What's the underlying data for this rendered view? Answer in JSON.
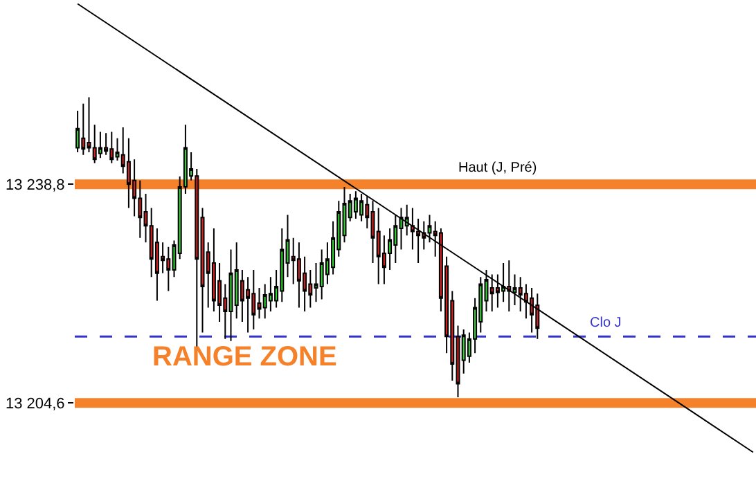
{
  "chart_data": {
    "type": "candlestick",
    "categories": [
      null,
      null,
      null,
      null,
      null,
      null,
      null,
      null,
      null,
      null,
      null,
      null,
      null,
      null,
      null,
      null,
      null,
      null,
      null,
      null,
      null,
      null,
      null,
      null,
      null,
      null,
      null,
      null,
      null,
      null,
      null,
      null,
      null,
      null,
      null,
      null,
      null,
      null,
      null,
      null,
      null,
      null,
      null,
      null,
      null,
      null,
      null,
      null,
      null,
      null,
      null,
      null,
      null,
      null,
      null,
      null,
      null,
      null,
      null,
      null,
      null,
      null,
      null,
      null,
      null,
      null,
      null,
      null,
      null,
      null,
      null,
      null,
      null,
      null,
      null,
      null,
      null,
      null,
      null,
      null,
      null,
      null,
      null,
      null,
      null,
      null,
      null,
      null,
      null,
      null,
      null,
      null,
      null,
      null,
      null,
      null,
      null,
      null,
      null,
      null,
      null,
      null,
      null,
      null,
      null,
      null,
      null,
      null,
      null,
      null,
      null,
      null,
      null,
      null,
      null,
      null,
      null,
      null,
      null,
      null
    ],
    "ohlc": [
      [
        13244.5,
        13250.3,
        13243.8,
        13247.5
      ],
      [
        13246.0,
        13251.4,
        13243.4,
        13244.3
      ],
      [
        13245.3,
        13252.4,
        13243.8,
        13244.5
      ],
      [
        13244.5,
        13248.1,
        13242.1,
        13242.7
      ],
      [
        13243.6,
        13247.0,
        13242.9,
        13244.5
      ],
      [
        13244.5,
        13246.8,
        13243.4,
        13244.0
      ],
      [
        13244.3,
        13247.0,
        13242.1,
        13242.7
      ],
      [
        13243.1,
        13246.0,
        13242.5,
        13243.8
      ],
      [
        13243.4,
        13247.7,
        13240.5,
        13241.6
      ],
      [
        13242.3,
        13246.0,
        13235.1,
        13238.8
      ],
      [
        13239.4,
        13242.7,
        13233.8,
        13236.6
      ],
      [
        13236.6,
        13239.4,
        13230.4,
        13233.6
      ],
      [
        13234.5,
        13237.3,
        13229.7,
        13232.3
      ],
      [
        13232.3,
        13235.1,
        13224.3,
        13227.1
      ],
      [
        13229.7,
        13231.9,
        13220.6,
        13224.9
      ],
      [
        13227.5,
        13229.7,
        13224.9,
        13226.9
      ],
      [
        13227.1,
        13229.0,
        13222.1,
        13225.4
      ],
      [
        13225.4,
        13230.0,
        13224.3,
        13229.3
      ],
      [
        13228.0,
        13240.0,
        13227.1,
        13238.4
      ],
      [
        13238.4,
        13248.1,
        13237.3,
        13244.5
      ],
      [
        13240.1,
        13243.8,
        13239.4,
        13241.2
      ],
      [
        13240.1,
        13241.2,
        13213.1,
        13227.1
      ],
      [
        13233.6,
        13235.1,
        13215.6,
        13222.8
      ],
      [
        13228.2,
        13229.7,
        13219.5,
        13224.9
      ],
      [
        13226.5,
        13231.9,
        13218.9,
        13220.6
      ],
      [
        13223.7,
        13226.5,
        13217.3,
        13219.9
      ],
      [
        13221.0,
        13223.2,
        13214.6,
        13218.9
      ],
      [
        13218.9,
        13228.6,
        13214.3,
        13224.9
      ],
      [
        13219.9,
        13229.7,
        13217.8,
        13225.4
      ],
      [
        13223.7,
        13225.4,
        13217.3,
        13220.6
      ],
      [
        13222.3,
        13224.3,
        13215.6,
        13221.0
      ],
      [
        13221.7,
        13225.4,
        13216.1,
        13218.4
      ],
      [
        13220.2,
        13222.6,
        13217.8,
        13219.3
      ],
      [
        13219.5,
        13223.2,
        13217.8,
        13221.5
      ],
      [
        13220.6,
        13224.3,
        13218.9,
        13221.7
      ],
      [
        13220.6,
        13225.4,
        13219.5,
        13222.8
      ],
      [
        13222.1,
        13231.9,
        13220.4,
        13228.6
      ],
      [
        13226.5,
        13234.0,
        13224.3,
        13230.1
      ],
      [
        13227.5,
        13230.4,
        13223.2,
        13226.9
      ],
      [
        13227.1,
        13229.7,
        13219.5,
        13223.7
      ],
      [
        13224.9,
        13227.5,
        13218.9,
        13222.1
      ],
      [
        13223.2,
        13225.4,
        13219.5,
        13221.5
      ],
      [
        13222.6,
        13226.5,
        13220.4,
        13223.2
      ],
      [
        13222.8,
        13228.6,
        13220.8,
        13226.5
      ],
      [
        13224.7,
        13229.7,
        13223.2,
        13227.1
      ],
      [
        13225.8,
        13233.0,
        13224.7,
        13230.4
      ],
      [
        13228.6,
        13236.2,
        13227.5,
        13234.5
      ],
      [
        13230.8,
        13238.4,
        13229.7,
        13235.8
      ],
      [
        13233.6,
        13237.3,
        13233.0,
        13236.2
      ],
      [
        13234.5,
        13237.7,
        13233.4,
        13236.6
      ],
      [
        13234.0,
        13237.3,
        13233.0,
        13236.2
      ],
      [
        13235.6,
        13236.9,
        13231.9,
        13233.6
      ],
      [
        13234.5,
        13236.2,
        13226.5,
        13230.4
      ],
      [
        13231.4,
        13235.1,
        13223.2,
        13227.5
      ],
      [
        13228.0,
        13230.8,
        13223.2,
        13225.8
      ],
      [
        13228.0,
        13231.9,
        13225.4,
        13230.1
      ],
      [
        13229.3,
        13234.0,
        13226.5,
        13232.3
      ],
      [
        13231.9,
        13235.1,
        13228.6,
        13233.6
      ],
      [
        13232.3,
        13235.6,
        13230.8,
        13233.6
      ],
      [
        13232.3,
        13235.1,
        13228.6,
        13231.4
      ],
      [
        13231.4,
        13233.4,
        13226.5,
        13230.8
      ],
      [
        13231.2,
        13233.0,
        13228.6,
        13230.4
      ],
      [
        13231.2,
        13234.0,
        13229.7,
        13232.3
      ],
      [
        13231.4,
        13233.0,
        13227.5,
        13230.8
      ],
      [
        13231.2,
        13231.9,
        13218.9,
        13221.0
      ],
      [
        13226.0,
        13227.5,
        13212.4,
        13215.0
      ],
      [
        13220.6,
        13222.1,
        13208.1,
        13210.7
      ],
      [
        13215.0,
        13216.7,
        13205.5,
        13207.6
      ],
      [
        13211.3,
        13216.1,
        13209.2,
        13215.2
      ],
      [
        13211.9,
        13215.6,
        13210.9,
        13214.6
      ],
      [
        13214.6,
        13221.0,
        13212.4,
        13219.5
      ],
      [
        13217.3,
        13224.3,
        13215.6,
        13223.2
      ],
      [
        13220.6,
        13225.4,
        13218.9,
        13223.9
      ],
      [
        13222.6,
        13224.7,
        13218.9,
        13221.7
      ],
      [
        13222.6,
        13224.7,
        13219.5,
        13221.9
      ],
      [
        13222.1,
        13226.5,
        13220.4,
        13222.8
      ],
      [
        13222.8,
        13226.9,
        13218.9,
        13222.1
      ],
      [
        13221.9,
        13224.7,
        13219.9,
        13222.6
      ],
      [
        13222.6,
        13224.3,
        13218.9,
        13221.5
      ],
      [
        13221.7,
        13223.2,
        13217.8,
        13220.4
      ],
      [
        13221.0,
        13222.6,
        13215.6,
        13218.4
      ],
      [
        13219.9,
        13221.7,
        13214.6,
        13216.3
      ],
      null,
      null,
      null,
      null,
      null,
      null,
      null,
      null,
      null,
      null,
      null,
      null,
      null,
      null,
      null,
      null,
      null,
      null,
      null,
      null,
      null,
      null,
      null,
      null,
      null,
      null,
      null,
      null,
      null,
      null,
      null,
      null,
      null,
      null,
      null,
      null,
      null,
      null
    ],
    "series": [
      {
        "type": "line",
        "color": "#000000",
        "values": [
          13267.0,
          null,
          null,
          null,
          null,
          null,
          null,
          null,
          null,
          null,
          null,
          null,
          null,
          null,
          null,
          null,
          null,
          null,
          null,
          null,
          null,
          null,
          null,
          null,
          null,
          null,
          null,
          null,
          null,
          null,
          null,
          null,
          null,
          null,
          null,
          null,
          null,
          null,
          null,
          null,
          null,
          null,
          null,
          null,
          null,
          null,
          null,
          null,
          null,
          null,
          null,
          null,
          null,
          null,
          null,
          null,
          null,
          null,
          null,
          null,
          null,
          null,
          null,
          null,
          null,
          null,
          null,
          null,
          null,
          null,
          null,
          null,
          null,
          null,
          null,
          null,
          null,
          null,
          null,
          null,
          null,
          null,
          null,
          null,
          null,
          null,
          null,
          null,
          null,
          null,
          null,
          null,
          null,
          null,
          null,
          null,
          null,
          null,
          null,
          null,
          null,
          null,
          null,
          null,
          null,
          null,
          null,
          null,
          null,
          null,
          null,
          null,
          null,
          null,
          null,
          null,
          null,
          null,
          null,
          13196.9
        ]
      }
    ],
    "ylim": [
      13191.0,
      13267.6
    ],
    "yticks": [
      {
        "value": 13238.8,
        "label": "13 238,8"
      },
      {
        "value": 13204.6,
        "label": "13 204,6"
      }
    ],
    "tick_labels": "y",
    "ref_lines": [
      {
        "axis": "y",
        "value": 13238.8,
        "label": "Haut (J, Pré)",
        "color": "#f5822a"
      },
      {
        "axis": "y",
        "value": 13204.6,
        "color": "#f5822a"
      },
      {
        "axis": "y",
        "value": 13215.0,
        "label": "Clo J",
        "color": "#3333cc",
        "line_style": "dashed"
      }
    ],
    "annotations": [
      "RANGE ZONE"
    ],
    "grid": false
  }
}
